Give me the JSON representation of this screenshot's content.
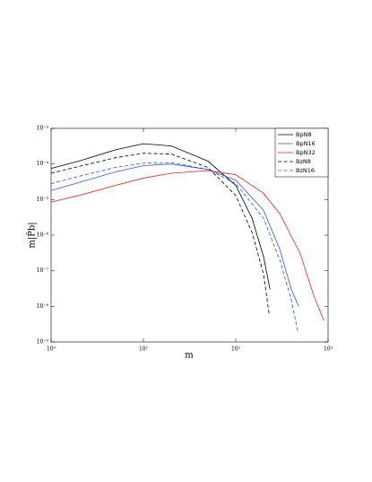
{
  "chart_data": {
    "type": "line",
    "xlabel": "m",
    "ylabel": "m|P̂b|",
    "xscale": "log",
    "yscale": "log",
    "xlim": [
      1,
      1000
    ],
    "ylim": [
      1e-09,
      0.001
    ],
    "xticks": [
      {
        "value": 1,
        "label": "10⁰"
      },
      {
        "value": 10,
        "label": "10¹"
      },
      {
        "value": 100,
        "label": "10²"
      },
      {
        "value": 1000,
        "label": "10³"
      }
    ],
    "yticks": [
      {
        "value": 1e-09,
        "label": "10⁻⁹"
      },
      {
        "value": 1e-08,
        "label": "10⁻⁸"
      },
      {
        "value": 1e-07,
        "label": "10⁻⁷"
      },
      {
        "value": 1e-06,
        "label": "10⁻⁶"
      },
      {
        "value": 1e-05,
        "label": "10⁻⁵"
      },
      {
        "value": 0.0001,
        "label": "10⁻⁴"
      },
      {
        "value": 0.001,
        "label": "10⁻³"
      }
    ],
    "legend": "upper right",
    "series": [
      {
        "name": "BpN8",
        "color": "#000000",
        "linestyle": "solid",
        "x": [
          1,
          2,
          5,
          10,
          20,
          50,
          100,
          150,
          200,
          235
        ],
        "values": [
          7.5e-05,
          0.00012,
          0.00025,
          0.00037,
          0.00032,
          0.00012,
          2.5e-05,
          3e-06,
          2.5e-07,
          3e-08
        ]
      },
      {
        "name": "BpN16",
        "color": "#3355dd",
        "linestyle": "solid",
        "x": [
          1,
          2,
          5,
          10,
          20,
          50,
          100,
          200,
          300,
          400,
          480
        ],
        "values": [
          1.8e-05,
          3e-05,
          6e-05,
          9e-05,
          0.0001,
          7e-05,
          3.5e-05,
          5e-06,
          4e-07,
          3e-08,
          1e-08
        ]
      },
      {
        "name": "BpN32",
        "color": "#ee2222",
        "linestyle": "solid",
        "x": [
          1,
          2,
          5,
          10,
          20,
          50,
          100,
          200,
          300,
          500,
          700,
          900
        ],
        "values": [
          8.5e-06,
          1.3e-05,
          2.5e-05,
          4e-05,
          5.5e-05,
          6.5e-05,
          5e-05,
          1.5e-05,
          4e-06,
          3e-07,
          2e-08,
          4e-09
        ]
      },
      {
        "name": "BzN8",
        "color": "#000000",
        "linestyle": "dashed",
        "x": [
          1,
          2,
          5,
          10,
          20,
          50,
          100,
          150,
          200,
          230
        ],
        "values": [
          5.5e-05,
          8.5e-05,
          0.00015,
          0.0002,
          0.00019,
          8e-05,
          1.3e-05,
          1.2e-06,
          8e-08,
          6e-09
        ]
      },
      {
        "name": "BzN16",
        "color": "#3355dd",
        "linestyle": "dashed",
        "x": [
          1,
          2,
          5,
          10,
          20,
          50,
          100,
          200,
          300,
          400,
          470
        ],
        "values": [
          2.8e-05,
          4.5e-05,
          8e-05,
          0.000105,
          0.00011,
          7e-05,
          2.8e-05,
          3e-06,
          2e-07,
          1.5e-08,
          2e-09
        ]
      }
    ]
  }
}
